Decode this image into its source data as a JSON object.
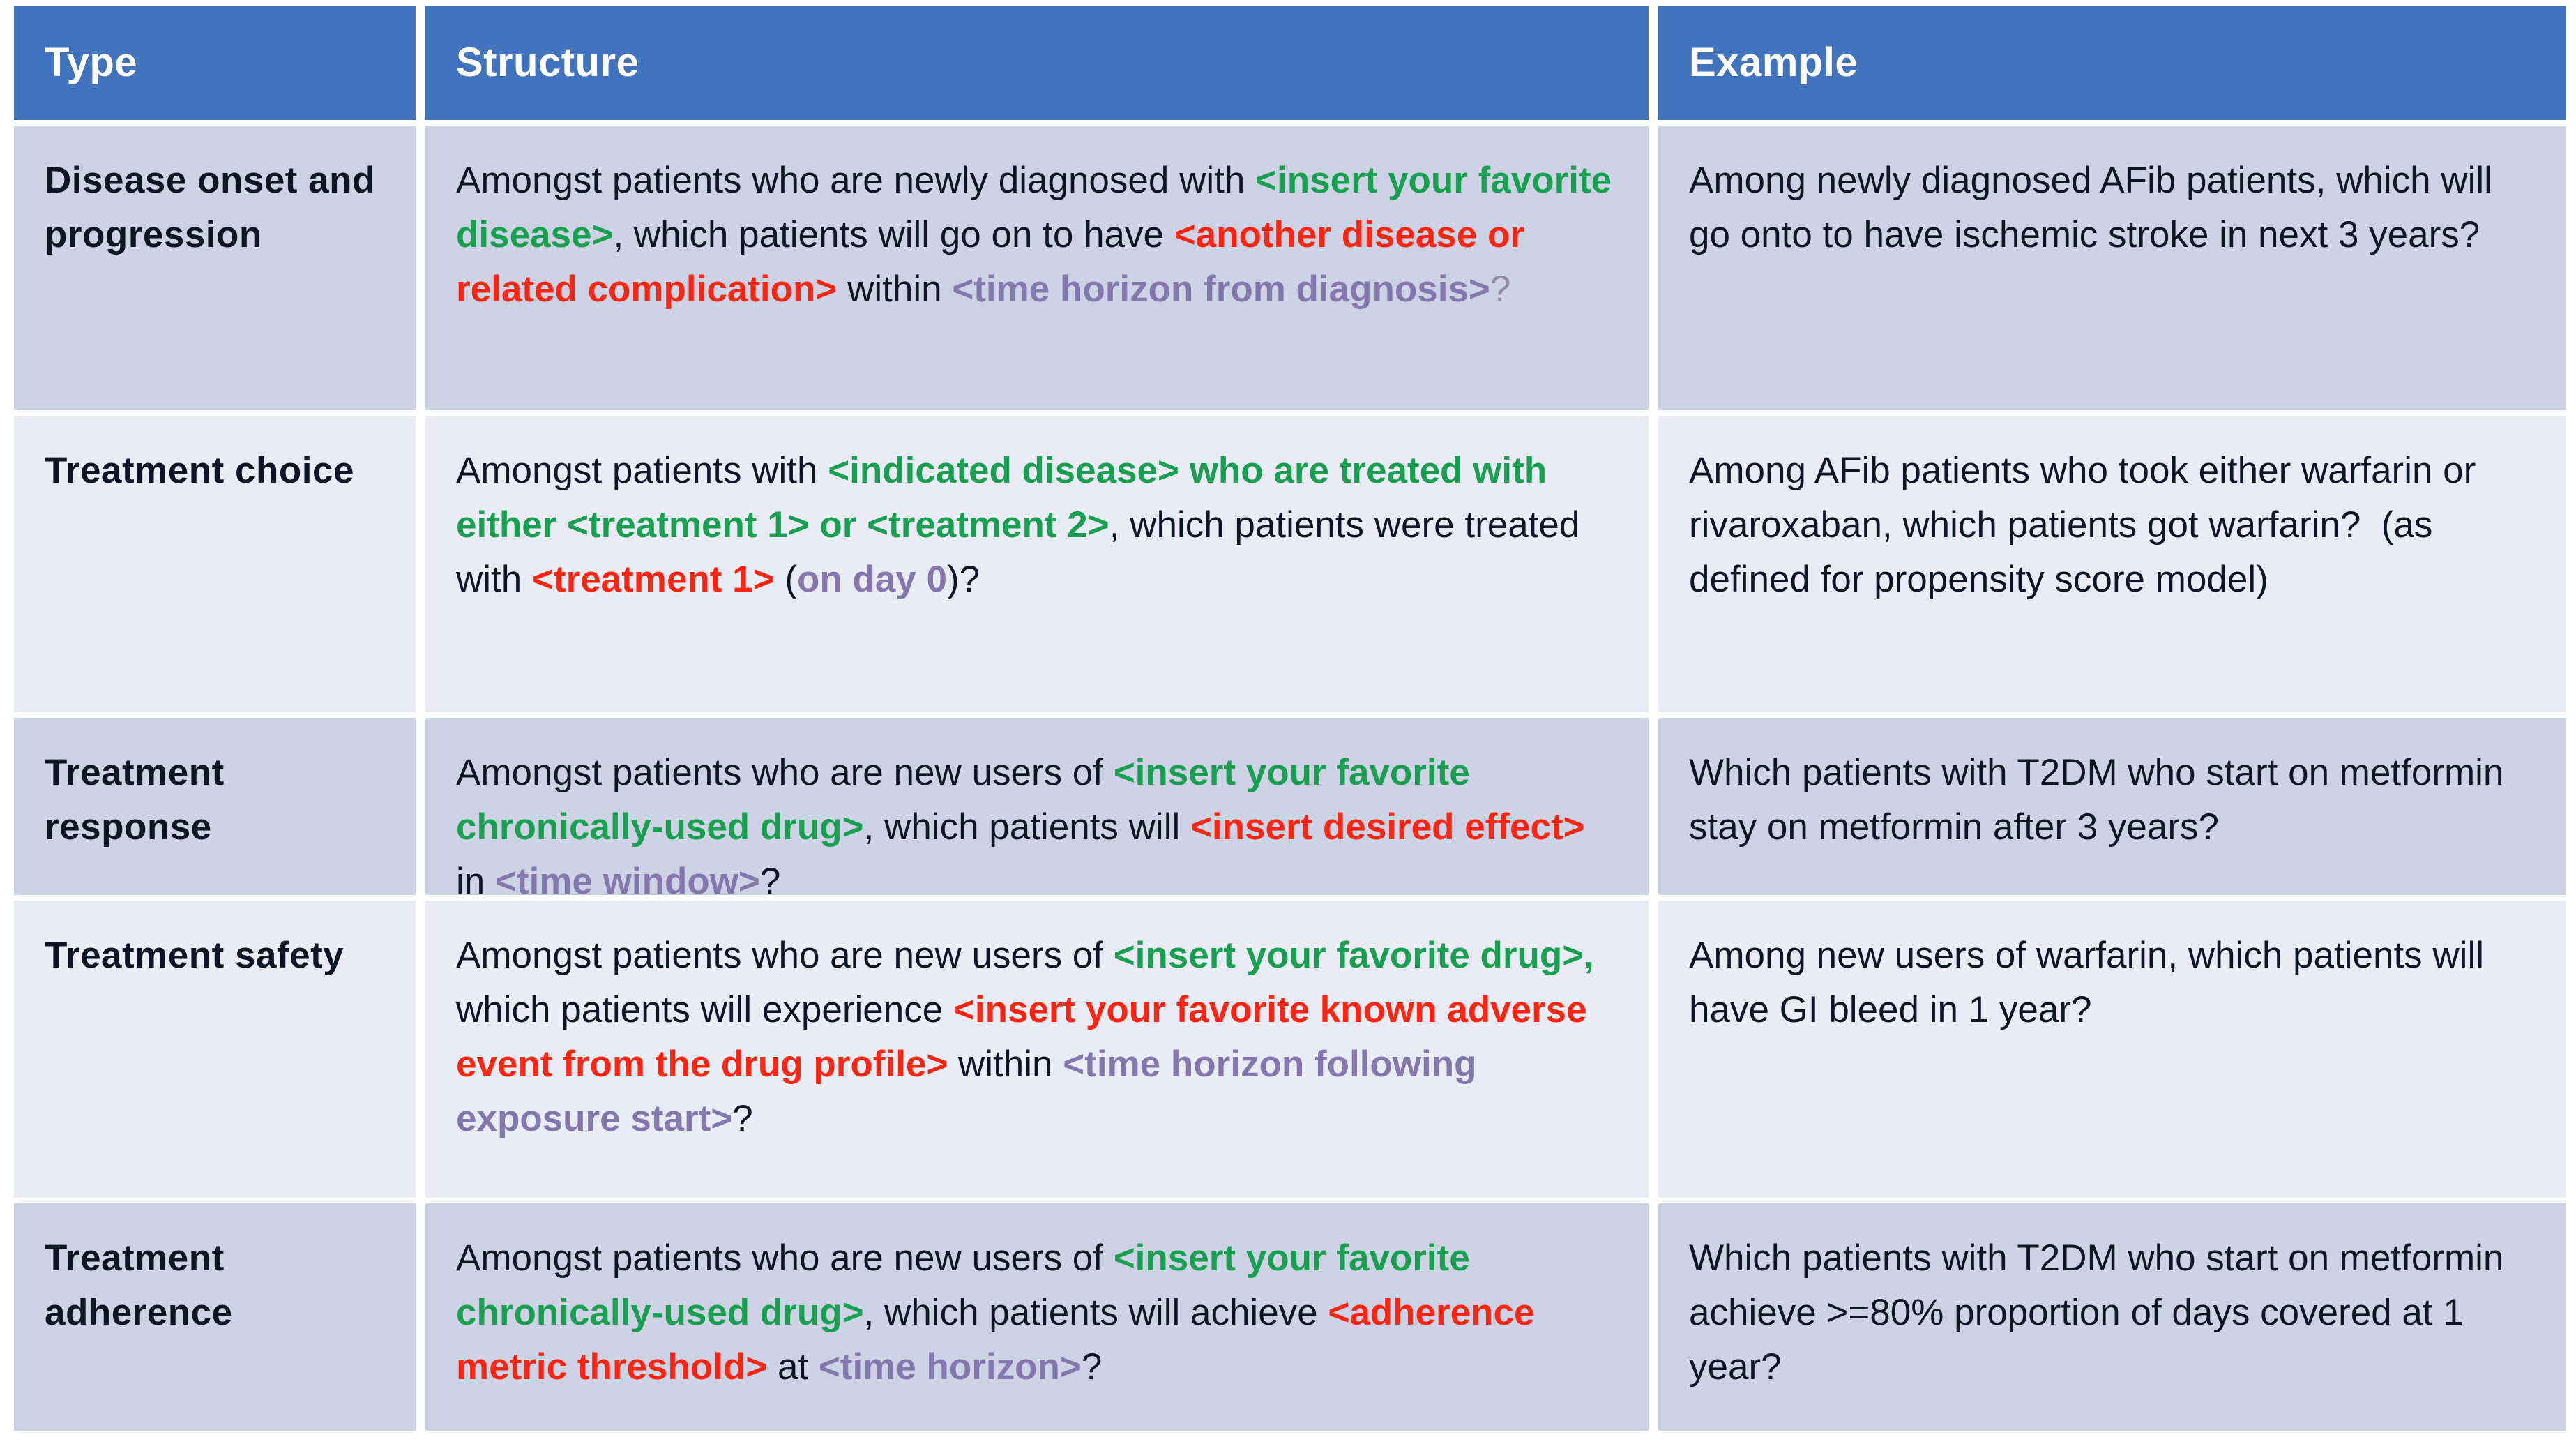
{
  "colors": {
    "header_bg": "#4274BE",
    "header_text": "#FFFFFF",
    "band_dark": "#CDD3E4",
    "band_light": "#EAECF5",
    "text": "#0E1525",
    "green": "#18A050",
    "red": "#FB2511",
    "purple": "#8377AE",
    "muted": "#9089A3"
  },
  "table": {
    "headers": [
      {
        "label": "Type"
      },
      {
        "label": "Structure"
      },
      {
        "label": "Example"
      }
    ],
    "rows": [
      {
        "type": "Disease onset and progression",
        "structure_segments": [
          {
            "text": "Amongst patients who are newly diagnosed with ",
            "color": "text",
            "bold": false
          },
          {
            "text": "<insert your favorite disease>",
            "color": "green",
            "bold": true
          },
          {
            "text": ", which patients will go on to have ",
            "color": "text",
            "bold": false
          },
          {
            "text": "<another disease or related complication>",
            "color": "red",
            "bold": true
          },
          {
            "text": " within ",
            "color": "text",
            "bold": false
          },
          {
            "text": "<time horizon from diagnosis>",
            "color": "purple",
            "bold": true
          },
          {
            "text": "?",
            "color": "muted",
            "bold": false
          }
        ],
        "example": "Among newly diagnosed AFib patients, which will go onto to have ischemic stroke in next 3 years?"
      },
      {
        "type": "Treatment choice",
        "structure_segments": [
          {
            "text": "Amongst patients with ",
            "color": "text",
            "bold": false
          },
          {
            "text": "<indicated disease> who are treated with either <treatment 1> or <treatment 2>",
            "color": "green",
            "bold": true
          },
          {
            "text": ", which patients were treated with ",
            "color": "text",
            "bold": false
          },
          {
            "text": "<treatment 1>",
            "color": "red",
            "bold": true
          },
          {
            "text": " (",
            "color": "text",
            "bold": false
          },
          {
            "text": "on day 0",
            "color": "purple",
            "bold": true
          },
          {
            "text": ")?",
            "color": "text",
            "bold": false
          }
        ],
        "example": "Among AFib patients who took either warfarin or rivaroxaban, which patients got warfarin?  (as defined for propensity score model)"
      },
      {
        "type": "Treatment response",
        "structure_segments": [
          {
            "text": "Amongst patients who are new users of ",
            "color": "text",
            "bold": false
          },
          {
            "text": "<insert your favorite chronically-used drug>",
            "color": "green",
            "bold": true
          },
          {
            "text": ", which patients will ",
            "color": "text",
            "bold": false
          },
          {
            "text": "<insert desired effect>",
            "color": "red",
            "bold": true
          },
          {
            "text": " in ",
            "color": "text",
            "bold": false
          },
          {
            "text": "<time window>",
            "color": "purple",
            "bold": true
          },
          {
            "text": "?",
            "color": "text",
            "bold": false
          }
        ],
        "example": "Which patients with T2DM who start on metformin stay on metformin after 3 years?"
      },
      {
        "type": "Treatment safety",
        "structure_segments": [
          {
            "text": "Amongst patients who are new users of ",
            "color": "text",
            "bold": false
          },
          {
            "text": "<insert your favorite drug>,",
            "color": "green",
            "bold": true
          },
          {
            "text": " which patients will experience ",
            "color": "text",
            "bold": false
          },
          {
            "text": "<insert your favorite known adverse event from the drug profile>",
            "color": "red",
            "bold": true
          },
          {
            "text": " within ",
            "color": "text",
            "bold": false
          },
          {
            "text": "<time horizon following exposure start>",
            "color": "purple",
            "bold": true
          },
          {
            "text": "?",
            "color": "text",
            "bold": false
          }
        ],
        "example": "Among new users of warfarin, which patients will have GI bleed in 1 year?"
      },
      {
        "type": "Treatment adherence",
        "structure_segments": [
          {
            "text": "Amongst patients who are new users of ",
            "color": "text",
            "bold": false
          },
          {
            "text": "<insert your favorite chronically-used drug>",
            "color": "green",
            "bold": true
          },
          {
            "text": ", which patients will achieve ",
            "color": "text",
            "bold": false
          },
          {
            "text": "<adherence metric threshold>",
            "color": "red",
            "bold": true
          },
          {
            "text": " at ",
            "color": "text",
            "bold": false
          },
          {
            "text": "<time horizon>",
            "color": "purple",
            "bold": true
          },
          {
            "text": "?",
            "color": "text",
            "bold": false
          }
        ],
        "example": "Which patients with T2DM who start on metformin achieve >=80% proportion of days covered at 1 year?"
      }
    ]
  }
}
